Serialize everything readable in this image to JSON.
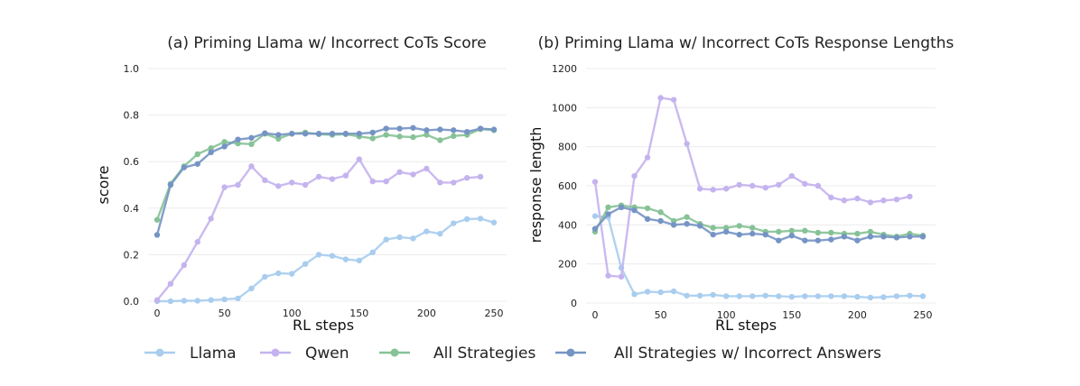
{
  "chart_data": [
    {
      "type": "line",
      "title": "(a) Priming Llama w/ Incorrect CoTs Score",
      "xlabel": "RL steps",
      "ylabel": "score",
      "xlim": [
        0,
        250
      ],
      "ylim": [
        0,
        1.0
      ],
      "x_ticks": [
        "0",
        "50",
        "100",
        "150",
        "200",
        "250"
      ],
      "y_ticks": [
        "0.0",
        "0.2",
        "0.4",
        "0.6",
        "0.8",
        "1.0"
      ],
      "grid": "horizontal",
      "series": [
        {
          "name": "Llama",
          "color": "#a9cdee",
          "x": [
            0,
            10,
            20,
            30,
            40,
            50,
            60,
            70,
            80,
            90,
            100,
            110,
            120,
            130,
            140,
            150,
            160,
            170,
            180,
            190,
            200,
            210,
            220,
            230,
            240,
            250
          ],
          "y": [
            0.0,
            0.0,
            0.002,
            0.002,
            0.005,
            0.008,
            0.012,
            0.055,
            0.105,
            0.12,
            0.118,
            0.16,
            0.2,
            0.195,
            0.18,
            0.175,
            0.21,
            0.265,
            0.275,
            0.27,
            0.3,
            0.29,
            0.335,
            0.353,
            0.355,
            0.338
          ]
        },
        {
          "name": "Qwen",
          "color": "#c4b3ee",
          "x": [
            0,
            10,
            20,
            30,
            40,
            50,
            60,
            70,
            80,
            90,
            100,
            110,
            120,
            130,
            140,
            150,
            160,
            170,
            180,
            190,
            200,
            210,
            220,
            230,
            240
          ],
          "y": [
            0.005,
            0.075,
            0.155,
            0.255,
            0.355,
            0.49,
            0.5,
            0.58,
            0.52,
            0.495,
            0.51,
            0.5,
            0.535,
            0.525,
            0.54,
            0.61,
            0.515,
            0.515,
            0.555,
            0.545,
            0.57,
            0.51,
            0.51,
            0.53,
            0.535
          ]
        },
        {
          "name": "All Strategies",
          "color": "#86c296",
          "x": [
            0,
            10,
            20,
            30,
            40,
            50,
            60,
            70,
            80,
            90,
            100,
            110,
            120,
            130,
            140,
            150,
            160,
            170,
            180,
            190,
            200,
            210,
            220,
            230,
            240,
            250
          ],
          "y": [
            0.35,
            0.505,
            0.58,
            0.632,
            0.658,
            0.685,
            0.678,
            0.675,
            0.72,
            0.698,
            0.72,
            0.725,
            0.718,
            0.715,
            0.718,
            0.708,
            0.7,
            0.715,
            0.708,
            0.705,
            0.715,
            0.692,
            0.71,
            0.715,
            0.74,
            0.735
          ]
        },
        {
          "name": "All Strategies w/ Incorrect Answers",
          "color": "#7594c4",
          "x": [
            0,
            10,
            20,
            30,
            40,
            50,
            60,
            70,
            80,
            90,
            100,
            110,
            120,
            130,
            140,
            150,
            160,
            170,
            180,
            190,
            200,
            210,
            220,
            230,
            240,
            250
          ],
          "y": [
            0.285,
            0.5,
            0.575,
            0.59,
            0.64,
            0.665,
            0.695,
            0.702,
            0.722,
            0.715,
            0.72,
            0.72,
            0.72,
            0.72,
            0.72,
            0.72,
            0.725,
            0.742,
            0.742,
            0.745,
            0.735,
            0.738,
            0.735,
            0.728,
            0.742,
            0.738
          ]
        }
      ]
    },
    {
      "type": "line",
      "title": "(b) Priming Llama w/ Incorrect CoTs Response Lengths",
      "xlabel": "RL steps",
      "ylabel": "response length",
      "xlim": [
        0,
        250
      ],
      "ylim": [
        0,
        1200
      ],
      "x_ticks": [
        "0",
        "50",
        "100",
        "150",
        "200",
        "250"
      ],
      "y_ticks": [
        "0",
        "200",
        "400",
        "600",
        "800",
        "1000",
        "1200"
      ],
      "grid": "horizontal",
      "series": [
        {
          "name": "Llama",
          "color": "#a9cdee",
          "x": [
            0,
            10,
            20,
            30,
            40,
            50,
            60,
            70,
            80,
            90,
            100,
            110,
            120,
            130,
            140,
            150,
            160,
            170,
            180,
            190,
            200,
            210,
            220,
            230,
            240,
            250
          ],
          "y": [
            445,
            440,
            180,
            45,
            58,
            55,
            60,
            38,
            38,
            42,
            35,
            35,
            35,
            38,
            35,
            32,
            35,
            35,
            35,
            35,
            32,
            28,
            30,
            35,
            38,
            35
          ]
        },
        {
          "name": "Qwen",
          "color": "#c4b3ee",
          "x": [
            0,
            10,
            20,
            30,
            40,
            50,
            60,
            70,
            80,
            90,
            100,
            110,
            120,
            130,
            140,
            150,
            160,
            170,
            180,
            190,
            200,
            210,
            220,
            230,
            240
          ],
          "y": [
            620,
            140,
            135,
            650,
            745,
            1050,
            1040,
            815,
            585,
            580,
            585,
            605,
            600,
            590,
            605,
            650,
            610,
            600,
            540,
            525,
            535,
            515,
            525,
            530,
            545
          ]
        },
        {
          "name": "All Strategies",
          "color": "#86c296",
          "x": [
            0,
            10,
            20,
            30,
            40,
            50,
            60,
            70,
            80,
            90,
            100,
            110,
            120,
            130,
            140,
            150,
            160,
            170,
            180,
            190,
            200,
            210,
            220,
            230,
            240,
            250
          ],
          "y": [
            365,
            490,
            500,
            490,
            485,
            465,
            420,
            440,
            405,
            385,
            385,
            395,
            385,
            365,
            365,
            370,
            370,
            360,
            360,
            355,
            355,
            365,
            350,
            340,
            355,
            345
          ]
        },
        {
          "name": "All Strategies w/ Incorrect Answers",
          "color": "#7594c4",
          "x": [
            0,
            10,
            20,
            30,
            40,
            50,
            60,
            70,
            80,
            90,
            100,
            110,
            120,
            130,
            140,
            150,
            160,
            170,
            180,
            190,
            200,
            210,
            220,
            230,
            240,
            250
          ],
          "y": [
            380,
            455,
            490,
            475,
            430,
            420,
            400,
            405,
            395,
            350,
            365,
            350,
            355,
            350,
            320,
            345,
            320,
            320,
            325,
            340,
            320,
            340,
            340,
            335,
            340,
            340
          ]
        }
      ]
    }
  ],
  "legend": {
    "placement": "bottom",
    "items": [
      {
        "label": "Llama",
        "color": "#a9cdee"
      },
      {
        "label": "Qwen",
        "color": "#c4b3ee"
      },
      {
        "label": "All Strategies",
        "color": "#86c296"
      },
      {
        "label": "All Strategies w/ Incorrect Answers",
        "color": "#7594c4"
      }
    ]
  }
}
